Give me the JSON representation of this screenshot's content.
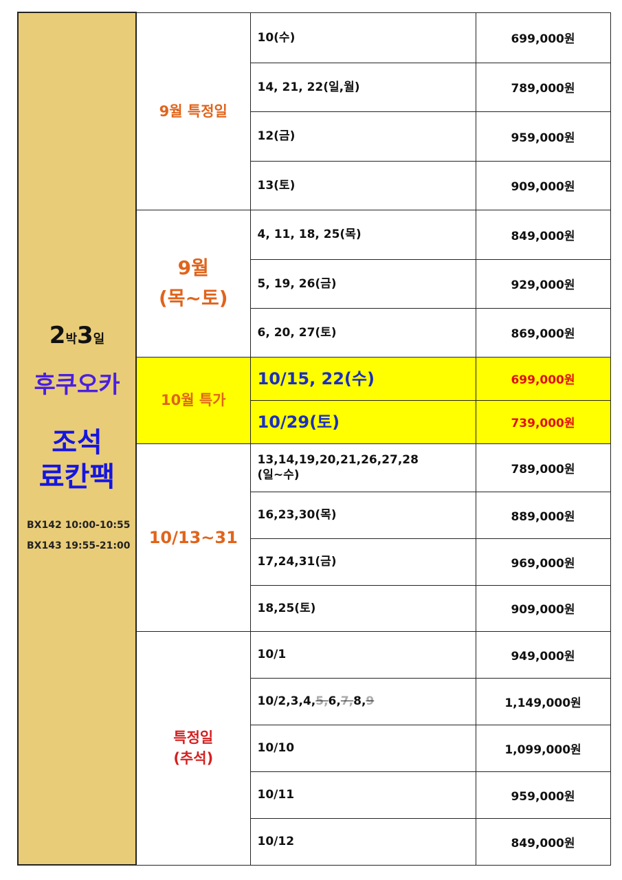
{
  "side": {
    "nights_num": "2",
    "nights_unit": "박",
    "days_num": "3",
    "days_unit": "일",
    "city": "후쿠오카",
    "package_line1": "조석",
    "package_line2": "료칸팩",
    "flights": [
      "BX142  10:00-10:55",
      "BX143  19:55-21:00"
    ]
  },
  "groups": [
    {
      "label": "9월  특정일",
      "color": "#e0641c",
      "rows": [
        {
          "date": "10(수)",
          "price": "699,000원"
        },
        {
          "date": "14,  21,  22(일,월)",
          "price": "789,000원"
        },
        {
          "date": "12(금)",
          "price": "959,000원"
        },
        {
          "date": "13(토)",
          "price": "909,000원"
        }
      ]
    },
    {
      "label": "9월\n(목~토)",
      "color": "#e0641c",
      "rows": [
        {
          "date": "4,  11,  18,  25(목)",
          "price": "849,000원"
        },
        {
          "date": "5,  19,  26(금)",
          "price": "929,000원"
        },
        {
          "date": "6,  20,  27(토)",
          "price": "869,000원"
        }
      ]
    },
    {
      "label": "10월  특가",
      "color": "#e0641c",
      "highlight": "#ffff00",
      "rows": [
        {
          "date": "10/15,  22(수)",
          "price": "699,000원"
        },
        {
          "date": "10/29(토)",
          "price": "739,000원"
        }
      ]
    },
    {
      "label": "10/13~31",
      "color": "#e0641c",
      "rows": [
        {
          "date": "13,14,19,20,21,26,27,28\n(일~수)",
          "price": "789,000원"
        },
        {
          "date": "16,23,30(목)",
          "price": "889,000원"
        },
        {
          "date": "17,24,31(금)",
          "price": "969,000원"
        },
        {
          "date": "18,25(토)",
          "price": "909,000원"
        }
      ]
    },
    {
      "label": "특정일\n(추석)",
      "color": "#d42020",
      "rows": [
        {
          "date": "10/1",
          "price": "949,000원"
        },
        {
          "date": "10/2,3,4,5,6,7,8,9",
          "date_segments": [
            {
              "text": "10/2,3,4,",
              "struck": false
            },
            {
              "text": "5,",
              "struck": true
            },
            {
              "text": "6,",
              "struck": false
            },
            {
              "text": "7,",
              "struck": true
            },
            {
              "text": "8,",
              "struck": false
            },
            {
              "text": "9",
              "struck": true
            }
          ],
          "price": "1,149,000원"
        },
        {
          "date": "10/10",
          "price": "1,099,000원"
        },
        {
          "date": "10/11",
          "price": "959,000원"
        },
        {
          "date": "10/12",
          "price": "849,000원"
        }
      ]
    }
  ]
}
